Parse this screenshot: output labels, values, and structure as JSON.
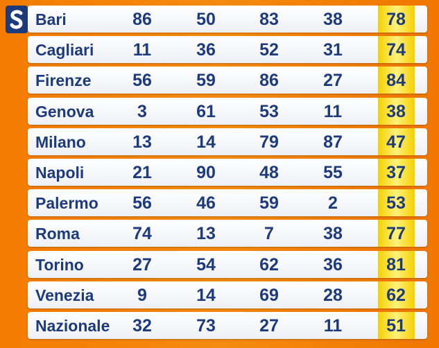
{
  "table": {
    "rows": [
      [
        "Bari",
        86,
        50,
        83,
        38,
        78
      ],
      [
        "Cagliari",
        11,
        36,
        52,
        31,
        74
      ],
      [
        "Firenze",
        56,
        59,
        86,
        27,
        84
      ],
      [
        "Genova",
        3,
        61,
        53,
        11,
        38
      ],
      [
        "Milano",
        13,
        14,
        79,
        87,
        47
      ],
      [
        "Napoli",
        21,
        90,
        48,
        55,
        37
      ],
      [
        "Palermo",
        56,
        46,
        59,
        2,
        53
      ],
      [
        "Roma",
        74,
        13,
        7,
        38,
        77
      ],
      [
        "Torino",
        27,
        54,
        62,
        36,
        81
      ],
      [
        "Venezia",
        9,
        14,
        69,
        28,
        62
      ],
      [
        "Nazionale",
        32,
        73,
        27,
        11,
        51
      ]
    ]
  }
}
